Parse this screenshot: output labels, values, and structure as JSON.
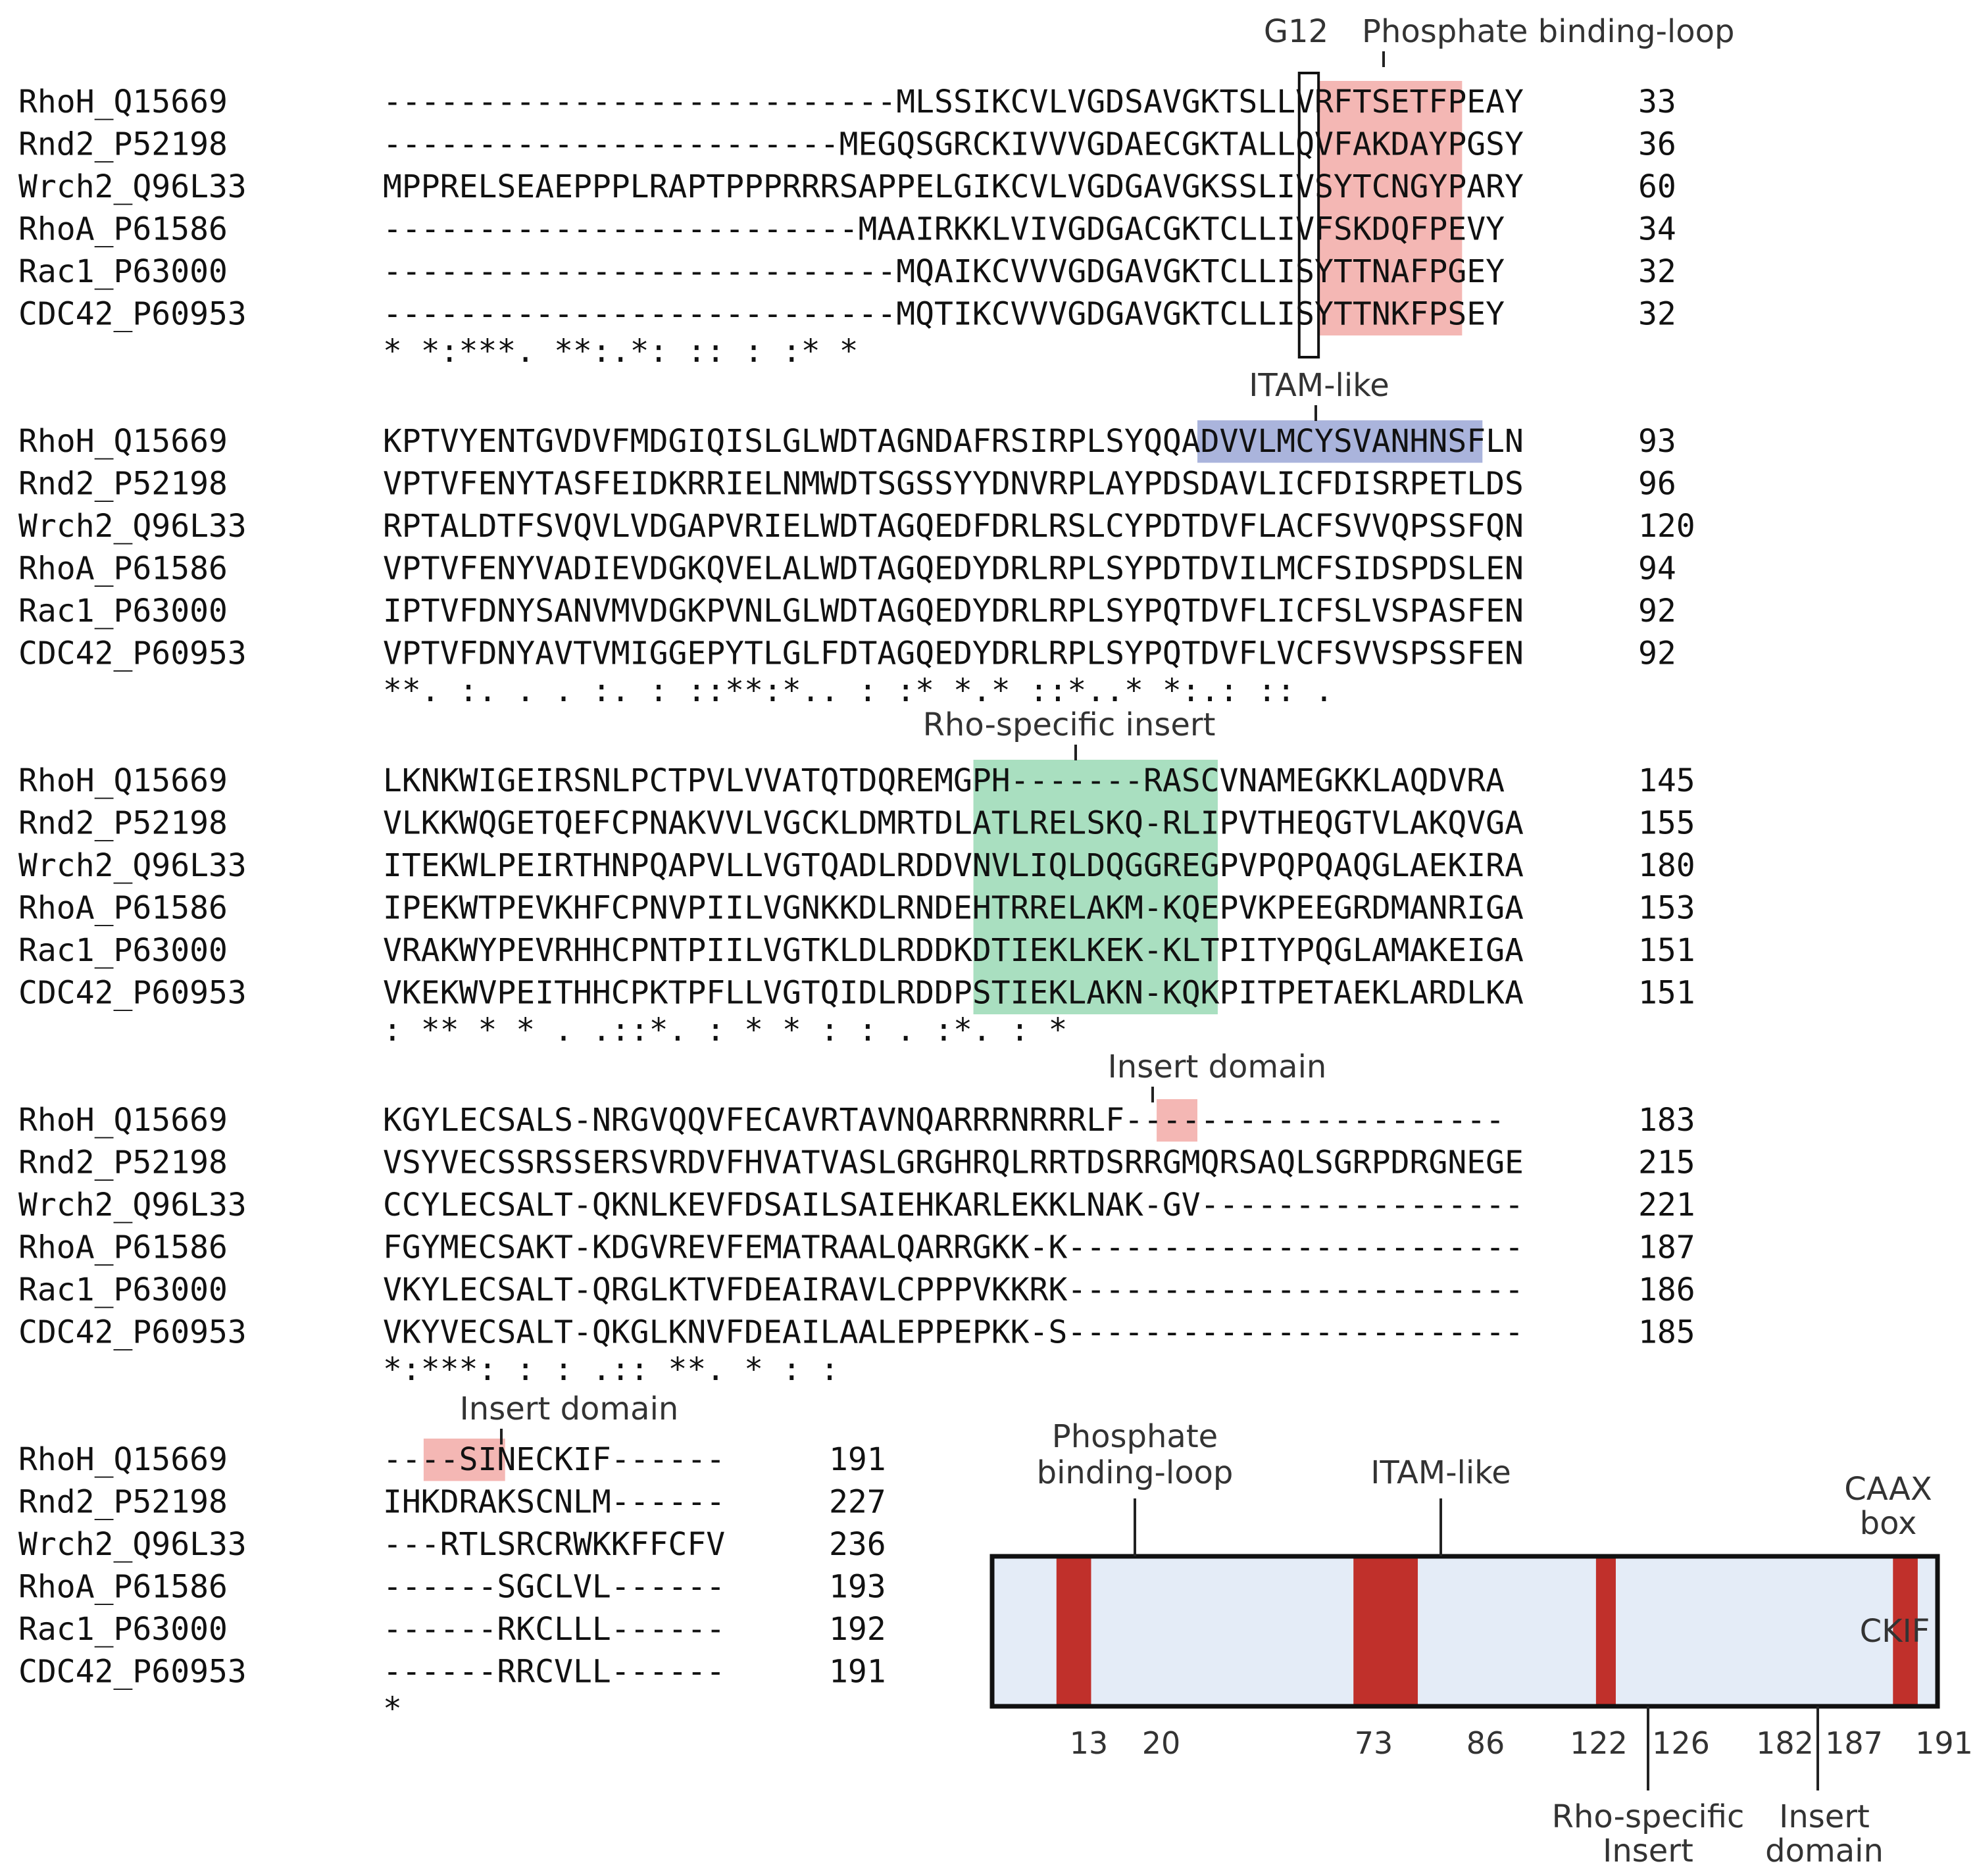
{
  "colors": {
    "pink": "#f4b7b4",
    "blue": "#aab4dc",
    "green": "#a9dfc0",
    "domain_red": "#c0302b",
    "domain_bg": "#e4ecf7",
    "border": "#111111"
  },
  "alignment": {
    "blocks": [
      {
        "rows": [
          {
            "name": "RhoH_Q15669",
            "seq": "---------------------------MLSSIKCVLVGDSAVGKTSLLVRFTSETFPEAY",
            "num": "33"
          },
          {
            "name": "Rnd2_P52198",
            "seq": "------------------------MEGQSGRCKIVVVGDAECGKTALLQVFAKDAYPGSY",
            "num": "36"
          },
          {
            "name": "Wrch2_Q96L33",
            "seq": "MPPRELSEAEPPPLRAPTPPPRRRSAPPELGIKCVLVGDGAVGKSSLIVSYTCNGYPARY",
            "num": "60"
          },
          {
            "name": "RhoA_P61586",
            "seq": "-------------------------MAAIRKKLVIVGDGACGKTCLLIVFSKDQFPEVY",
            "num": "34"
          },
          {
            "name": "Rac1_P63000",
            "seq": "---------------------------MQAIKCVVVGDGAVGKTCLLISYTTNAFPGEY",
            "num": "32"
          },
          {
            "name": "CDC42_P60953",
            "seq": "---------------------------MQTIKCVVVGDGAVGKTCLLISYTTNKFPSEY",
            "num": "32"
          }
        ],
        "conservation": "                                 * *:***.  **:.*:  :: : :*  *",
        "labels": [
          {
            "text": "G12",
            "anchor": "col",
            "col": 45
          },
          {
            "text": "Phosphate binding-loop",
            "anchor": "col",
            "col": 49
          }
        ]
      },
      {
        "rows": [
          {
            "name": "RhoH_Q15669",
            "seq": "KPTVYENTGVDVFMDGIQISLGLWDTAGNDAFRSIRPLSYQQADVVLMCYSVANHNSFLN",
            "num": "93"
          },
          {
            "name": "Rnd2_P52198",
            "seq": "VPTVFENYTASFEIDKRRIELNMWDTSGSSYYDNVRPLAYPDSDAVLICFDISRPETLDS",
            "num": "96"
          },
          {
            "name": "Wrch2_Q96L33",
            "seq": "RPTALDTFSVQVLVDGAPVRIELWDTAGQEDFDRLRSLCYPDTDVFLACFSVVQPSSFQN",
            "num": "120"
          },
          {
            "name": "RhoA_P61586",
            "seq": "VPTVFENYVADIEVDGKQVELALWDTAGQEDYDRLRPLSYPDTDVILMCFSIDSPDSLEN",
            "num": "94"
          },
          {
            "name": "Rac1_P63000",
            "seq": "IPTVFDNYSANVMVDGKPVNLGLWDTAGQEDYDRLRPLSYPQTDVFLICFSLVSPASFEN",
            "num": "92"
          },
          {
            "name": "CDC42_P60953",
            "seq": "VPTVFDNYAVTVMIGGEPYTLGLFDTAGQEDYDRLRPLSYPQTDVFLVCFSVVSPSSFEN",
            "num": "92"
          }
        ],
        "conservation": " **. :.  . . :.     : ::**:*.. :  :* *.* ::*..* *:.:     :: .",
        "labels": [
          {
            "text": "ITAM-like",
            "anchor": "col",
            "col": 46
          }
        ]
      },
      {
        "rows": [
          {
            "name": "RhoH_Q15669",
            "seq": "LKNKWIGEIRSNLPCTPVLVVATQTDQREMGPH-------RASCVNAMEGKKLAQDVRA",
            "num": "145"
          },
          {
            "name": "Rnd2_P52198",
            "seq": "VLKKWQGETQEFCPNAKVVLVGCKLDMRTDLATLRELSKQ-RLIPVTHEQGTVLAKQVGA",
            "num": "155"
          },
          {
            "name": "Wrch2_Q96L33",
            "seq": "ITEKWLPEIRTHNPQAPVLLVGTQADLRDDVNVLIQLDQGGREGPVPQPQAQGLAEKIRA",
            "num": "180"
          },
          {
            "name": "RhoA_P61586",
            "seq": "IPEKWTPEVKHFCPNVPIILVGNKKDLRNDEHTRRELAKM-KQEPVKPEEGRDMANRIGA",
            "num": "153"
          },
          {
            "name": "Rac1_P63000",
            "seq": "VRAKWYPEVRHHCPNTPIILVGTKLDLRDDKDTIEKLKEK-KLTPITYPQGLAMAKEIGA",
            "num": "151"
          },
          {
            "name": "CDC42_P60953",
            "seq": "VKEKWVPEITHHCPKTPFLLVGTQIDLRDDPSTIEKLAKN-KQKPITPETAEKLARDLKA",
            "num": "151"
          }
        ],
        "conservation": ":  **  *     * . .::*. : * *         :  :    .  :*. : *",
        "labels": [
          {
            "text": "Rho-specific insert",
            "anchor": "col",
            "col": 34
          }
        ]
      },
      {
        "rows": [
          {
            "name": "RhoH_Q15669",
            "seq": "KGYLECSALS-NRGVQQVFECAVRTAVNQARRRNRRRLF--------------------",
            "num": "183"
          },
          {
            "name": "Rnd2_P52198",
            "seq": "VSYVECSSRSSERSVRDVFHVATVASLGRGHRQLRRTDSRRGMQRSAQLSGRPDRGNEGE",
            "num": "215"
          },
          {
            "name": "Wrch2_Q96L33",
            "seq": "CCYLECSALT-QKNLKEVFDSAILSAIEHKARLEKKLNAK-GV-----------------",
            "num": "221"
          },
          {
            "name": "RhoA_P61586",
            "seq": "FGYMECSAKT-KDGVREVFEMATRAALQARRGKK-K------------------------",
            "num": "187"
          },
          {
            "name": "Rac1_P63000",
            "seq": "VKYLECSALT-QRGLKTVFDEAIRAVLCPPPVKKRK------------------------",
            "num": "186"
          },
          {
            "name": "CDC42_P60953",
            "seq": "VKYVECSALT-QKGLKNVFDEAILAALEPPEPKK-S------------------------",
            "num": "185"
          }
        ],
        "conservation": "  *:***: : :  .:: **. *  : :",
        "labels": [
          {
            "text": "Insert domain",
            "anchor": "col",
            "col": 37
          }
        ]
      },
      {
        "rows": [
          {
            "name": "RhoH_Q15669",
            "seq": "----SINECKIF------",
            "num": "191"
          },
          {
            "name": "Rnd2_P52198",
            "seq": "IHKDRAKSCNLM------",
            "num": "227"
          },
          {
            "name": "Wrch2_Q96L33",
            "seq": "---RTLSRCRWKKFFCFV",
            "num": "236"
          },
          {
            "name": "RhoA_P61586",
            "seq": "------SGCLVL------",
            "num": "193"
          },
          {
            "name": "Rac1_P63000",
            "seq": "------RKCLLL------",
            "num": "192"
          },
          {
            "name": "CDC42_P60953",
            "seq": "------RRCVLL------",
            "num": "191"
          }
        ],
        "conservation": "        *",
        "labels": [
          {
            "text": "Insert domain",
            "anchor": "col",
            "col": 5
          }
        ]
      }
    ]
  },
  "domain_map": {
    "length": 191,
    "segments": [
      {
        "start": 13,
        "end": 20
      },
      {
        "start": 73,
        "end": 86
      },
      {
        "start": 122,
        "end": 126
      },
      {
        "start": 182,
        "end": 187
      }
    ],
    "ticks": [
      "13",
      "20",
      "73",
      "86",
      "122",
      "126",
      "182",
      "187",
      "191"
    ],
    "labels_above": [
      {
        "lines": [
          "Phosphate",
          "binding-loop"
        ]
      },
      {
        "lines": [
          "ITAM-like"
        ]
      }
    ],
    "labels_below": [
      {
        "lines": [
          "Rho-specific",
          "Insert"
        ]
      },
      {
        "lines": [
          "Insert",
          "domain"
        ]
      }
    ],
    "caax": {
      "lines": [
        "CAAX",
        "box"
      ],
      "motif": "CKIF"
    }
  }
}
